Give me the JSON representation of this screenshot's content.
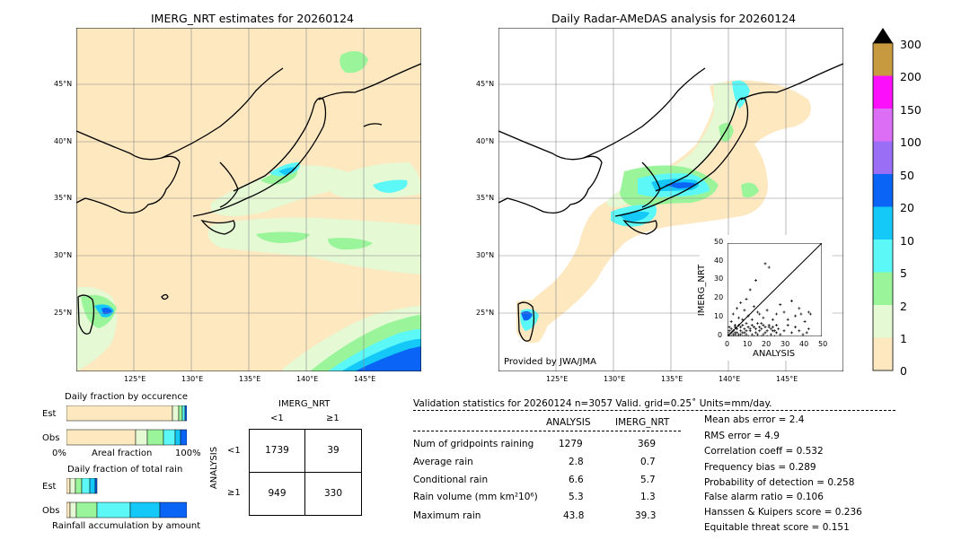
{
  "maps": {
    "left": {
      "title": "IMERG_NRT estimates for 20260124",
      "lat_labels": [
        "45°N",
        "40°N",
        "35°N",
        "30°N",
        "25°N"
      ],
      "lon_labels": [
        "125°E",
        "130°E",
        "135°E",
        "140°E",
        "145°E"
      ]
    },
    "right": {
      "title": "Daily Radar-AMeDAS analysis for 20260124",
      "lat_labels": [
        "45°N",
        "40°N",
        "35°N",
        "30°N",
        "25°N"
      ],
      "lon_labels": [
        "125°E",
        "130°E",
        "135°E",
        "140°E",
        "145°E"
      ],
      "credit": "Provided by JWA/JMA"
    }
  },
  "colorbar": {
    "labels": [
      "0",
      "1",
      "2",
      "5",
      "10",
      "20",
      "50",
      "100",
      "150",
      "200",
      "300"
    ],
    "colors": [
      "#fde8c0",
      "#e4f9d4",
      "#9af59a",
      "#5cf8f8",
      "#14c8f8",
      "#0a64f5",
      "#9a6ef5",
      "#dc6ef5",
      "#fc10fc",
      "#c89a40"
    ]
  },
  "inset": {
    "xlabel": "ANALYSIS",
    "ylabel": "IMERG_NRT",
    "ticks": [
      "0",
      "10",
      "20",
      "30",
      "40",
      "50"
    ]
  },
  "fractions": {
    "occurrence_title": "Daily fraction by occurence",
    "total_title": "Daily fraction of total rain",
    "est_label": "Est",
    "obs_label": "Obs",
    "axis_left": "0%",
    "axis_mid": "Areal fraction",
    "axis_right": "100%",
    "bottom_label": "Rainfall accumulation by amount"
  },
  "contingency": {
    "col_header": "IMERG_NRT",
    "row_header": "ANALYSIS",
    "col_lt": "<1",
    "col_ge": "≥1",
    "row_lt": "<1",
    "row_ge": "≥1",
    "a": "1739",
    "b": "39",
    "c": "949",
    "d": "330"
  },
  "validation": {
    "header": "Validation statistics for 20260124  n=3057 Valid. grid=0.25˚ Units=mm/day.",
    "col_analysis": "ANALYSIS",
    "col_imerg": "IMERG_NRT",
    "rows": [
      {
        "label": "Num of gridpoints raining",
        "analysis": "1279",
        "imerg": "369"
      },
      {
        "label": "Average rain",
        "analysis": "2.8",
        "imerg": "0.7"
      },
      {
        "label": "Conditional rain",
        "analysis": "6.6",
        "imerg": "5.7"
      },
      {
        "label": "Rain volume (mm km²10⁶)",
        "analysis": "5.3",
        "imerg": "1.3"
      },
      {
        "label": "Maximum rain",
        "analysis": "43.8",
        "imerg": "39.3"
      }
    ],
    "scores": [
      "Mean abs error =    2.4",
      "RMS error =    4.9",
      "Correlation coeff =  0.532",
      "Frequency bias =  0.289",
      "Probability of detection =  0.258",
      "False alarm ratio =  0.106",
      "Hanssen & Kuipers score =  0.236",
      "Equitable threat score =  0.151"
    ]
  },
  "chart_data": {
    "type": "scatter",
    "xlabel": "ANALYSIS",
    "ylabel": "IMERG_NRT",
    "xlim": [
      0,
      50
    ],
    "ylim": [
      0,
      50
    ],
    "grid": false,
    "points": [
      [
        1,
        1
      ],
      [
        2,
        0
      ],
      [
        3,
        1
      ],
      [
        4,
        2
      ],
      [
        5,
        0
      ],
      [
        6,
        1
      ],
      [
        7,
        3
      ],
      [
        8,
        0
      ],
      [
        9,
        2
      ],
      [
        10,
        1
      ],
      [
        11,
        0
      ],
      [
        12,
        4
      ],
      [
        13,
        1
      ],
      [
        14,
        0
      ],
      [
        15,
        2
      ],
      [
        16,
        1
      ],
      [
        17,
        3
      ],
      [
        18,
        0
      ],
      [
        19,
        1
      ],
      [
        20,
        2
      ],
      [
        21,
        0
      ],
      [
        22,
        5
      ],
      [
        23,
        1
      ],
      [
        24,
        3
      ],
      [
        25,
        0
      ],
      [
        26,
        2
      ],
      [
        27,
        4
      ],
      [
        28,
        1
      ],
      [
        30,
        3
      ],
      [
        32,
        6
      ],
      [
        34,
        2
      ],
      [
        36,
        5
      ],
      [
        38,
        3
      ],
      [
        40,
        1
      ],
      [
        42,
        2
      ],
      [
        43,
        4
      ],
      [
        2,
        8
      ],
      [
        3,
        12
      ],
      [
        4,
        6
      ],
      [
        5,
        15
      ],
      [
        6,
        10
      ],
      [
        7,
        18
      ],
      [
        8,
        9
      ],
      [
        9,
        14
      ],
      [
        10,
        20
      ],
      [
        11,
        11
      ],
      [
        12,
        25
      ],
      [
        13,
        9
      ],
      [
        14,
        16
      ],
      [
        15,
        30
      ],
      [
        16,
        13
      ],
      [
        17,
        12
      ],
      [
        18,
        7
      ],
      [
        19,
        10
      ],
      [
        20,
        39
      ],
      [
        21,
        14
      ],
      [
        22,
        37
      ],
      [
        24,
        9
      ],
      [
        26,
        12
      ],
      [
        28,
        17
      ],
      [
        30,
        13
      ],
      [
        32,
        9
      ],
      [
        34,
        19
      ],
      [
        36,
        11
      ],
      [
        38,
        15
      ],
      [
        39,
        12
      ],
      [
        41,
        8
      ],
      [
        43,
        13
      ],
      [
        44,
        12
      ],
      [
        2,
        4
      ],
      [
        3,
        3
      ],
      [
        4,
        5
      ],
      [
        5,
        4
      ],
      [
        6,
        6
      ],
      [
        7,
        5
      ],
      [
        8,
        6
      ],
      [
        9,
        4
      ],
      [
        10,
        7
      ],
      [
        11,
        5
      ],
      [
        12,
        3
      ],
      [
        13,
        6
      ],
      [
        14,
        5
      ],
      [
        15,
        4
      ],
      [
        16,
        7
      ],
      [
        17,
        5
      ],
      [
        18,
        4
      ],
      [
        19,
        6
      ],
      [
        20,
        5
      ],
      [
        21,
        3
      ],
      [
        22,
        6
      ],
      [
        23,
        4
      ],
      [
        24,
        5
      ],
      [
        25,
        3
      ],
      [
        26,
        6
      ],
      [
        1,
        3
      ],
      [
        1,
        5
      ],
      [
        2,
        2
      ],
      [
        3,
        0
      ],
      [
        4,
        1
      ],
      [
        5,
        2
      ],
      [
        6,
        0
      ],
      [
        7,
        1
      ],
      [
        8,
        2
      ],
      [
        9,
        0
      ],
      [
        10,
        3
      ],
      [
        0,
        1
      ],
      [
        0,
        2
      ],
      [
        1,
        0
      ]
    ]
  }
}
